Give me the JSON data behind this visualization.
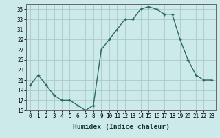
{
  "x": [
    0,
    1,
    2,
    3,
    4,
    5,
    6,
    7,
    8,
    9,
    10,
    11,
    12,
    13,
    14,
    15,
    16,
    17,
    18,
    19,
    20,
    21,
    22,
    23
  ],
  "y": [
    20,
    22,
    20,
    18,
    17,
    17,
    16,
    15,
    16,
    27,
    29,
    31,
    33,
    33,
    35,
    35.5,
    35,
    34,
    34,
    29,
    25,
    22,
    21,
    21
  ],
  "line_color": "#2d6b5e",
  "marker_color": "#2d6b5e",
  "bg_color": "#cdeaea",
  "grid_color": "#adc8c8",
  "xlabel": "Humidex (Indice chaleur)",
  "ylim": [
    15,
    36
  ],
  "yticks": [
    15,
    17,
    19,
    21,
    23,
    25,
    27,
    29,
    31,
    33,
    35
  ],
  "xticks": [
    0,
    1,
    2,
    3,
    4,
    5,
    6,
    7,
    8,
    9,
    10,
    11,
    12,
    13,
    14,
    15,
    16,
    17,
    18,
    19,
    20,
    21,
    22,
    23
  ],
  "xlabel_fontsize": 7,
  "tick_fontsize": 5.5,
  "marker_size": 2.5,
  "line_width": 1.0
}
